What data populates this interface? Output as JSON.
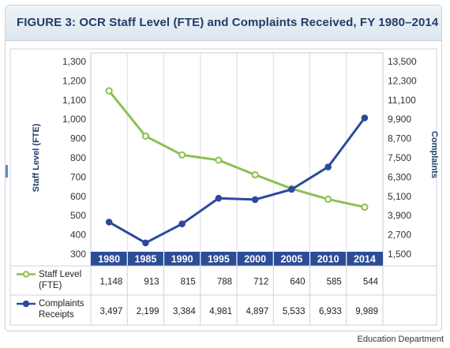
{
  "title": "FIGURE 3: OCR Staff Level (FTE) and Complaints Received, FY 1980–2014",
  "source": "Education Department",
  "colors": {
    "staff": "#8cc152",
    "complaints": "#2b4a9b",
    "year_band": "#2c4c96",
    "plot_bg": "#ffffff",
    "grid": "#d8dde3"
  },
  "chart_data": {
    "type": "line",
    "categories": [
      "1980",
      "1985",
      "1990",
      "1995",
      "2000",
      "2005",
      "2010",
      "2014"
    ],
    "ylabel_left": "Staff Level (FTE)",
    "ylabel_right": "Complaints",
    "ylim_left": [
      300,
      1300
    ],
    "ylim_right": [
      1500,
      13500
    ],
    "yticks_left": [
      "1,300",
      "1,200",
      "1,100",
      "1,000",
      "900",
      "800",
      "700",
      "600",
      "500",
      "400",
      "300"
    ],
    "yticks_right": [
      "13,500",
      "12,300",
      "11,100",
      "9,900",
      "8,700",
      "7,500",
      "6,300",
      "5,100",
      "3,900",
      "2,700",
      "1,500"
    ],
    "series": [
      {
        "name": "Staff Level (FTE)",
        "axis": "left",
        "values": [
          1148,
          913,
          815,
          788,
          712,
          640,
          585,
          544
        ],
        "labels": [
          "1,148",
          "913",
          "815",
          "788",
          "712",
          "640",
          "585",
          "544"
        ]
      },
      {
        "name": "Complaints Receipts",
        "axis": "right",
        "values": [
          3497,
          2199,
          3384,
          4981,
          4897,
          5533,
          6933,
          9989
        ],
        "labels": [
          "3,497",
          "2,199",
          "3,384",
          "4,981",
          "4,897",
          "5,533",
          "6,933",
          "9,989"
        ]
      }
    ],
    "legend": "table-below"
  }
}
